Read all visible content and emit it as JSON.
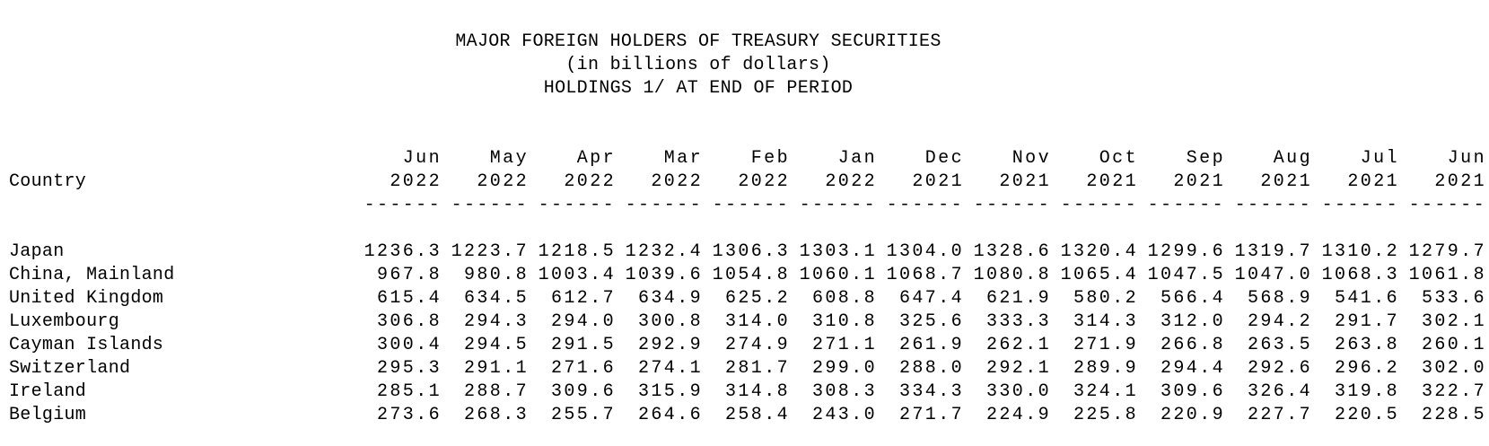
{
  "page": {
    "background_color": "#ffffff",
    "text_color": "#000000"
  },
  "title": {
    "line1": "MAJOR FOREIGN HOLDERS OF TREASURY SECURITIES",
    "line2": "(in billions of dollars)",
    "line3": "HOLDINGS 1/ AT END OF PERIOD"
  },
  "table": {
    "country_header": "Country",
    "column_separator": "------",
    "columns": [
      {
        "month": "Jun",
        "year": "2022"
      },
      {
        "month": "May",
        "year": "2022"
      },
      {
        "month": "Apr",
        "year": "2022"
      },
      {
        "month": "Mar",
        "year": "2022"
      },
      {
        "month": "Feb",
        "year": "2022"
      },
      {
        "month": "Jan",
        "year": "2022"
      },
      {
        "month": "Dec",
        "year": "2021"
      },
      {
        "month": "Nov",
        "year": "2021"
      },
      {
        "month": "Oct",
        "year": "2021"
      },
      {
        "month": "Sep",
        "year": "2021"
      },
      {
        "month": "Aug",
        "year": "2021"
      },
      {
        "month": "Jul",
        "year": "2021"
      },
      {
        "month": "Jun",
        "year": "2021"
      }
    ],
    "rows": [
      {
        "country": "Japan",
        "values": [
          "1236.3",
          "1223.7",
          "1218.5",
          "1232.4",
          "1306.3",
          "1303.1",
          "1304.0",
          "1328.6",
          "1320.4",
          "1299.6",
          "1319.7",
          "1310.2",
          "1279.7"
        ]
      },
      {
        "country": "China, Mainland",
        "values": [
          "967.8",
          "980.8",
          "1003.4",
          "1039.6",
          "1054.8",
          "1060.1",
          "1068.7",
          "1080.8",
          "1065.4",
          "1047.5",
          "1047.0",
          "1068.3",
          "1061.8"
        ]
      },
      {
        "country": "United Kingdom",
        "values": [
          "615.4",
          "634.5",
          "612.7",
          "634.9",
          "625.2",
          "608.8",
          "647.4",
          "621.9",
          "580.2",
          "566.4",
          "568.9",
          "541.6",
          "533.6"
        ]
      },
      {
        "country": "Luxembourg",
        "values": [
          "306.8",
          "294.3",
          "294.0",
          "300.8",
          "314.0",
          "310.8",
          "325.6",
          "333.3",
          "314.3",
          "312.0",
          "294.2",
          "291.7",
          "302.1"
        ]
      },
      {
        "country": "Cayman Islands",
        "values": [
          "300.4",
          "294.5",
          "291.5",
          "292.9",
          "274.9",
          "271.1",
          "261.9",
          "262.1",
          "271.9",
          "266.8",
          "263.5",
          "263.8",
          "260.1"
        ]
      },
      {
        "country": "Switzerland",
        "values": [
          "295.3",
          "291.1",
          "271.6",
          "274.1",
          "281.7",
          "299.0",
          "288.0",
          "292.1",
          "289.9",
          "294.4",
          "292.6",
          "296.2",
          "302.0"
        ]
      },
      {
        "country": "Ireland",
        "values": [
          "285.1",
          "288.7",
          "309.6",
          "315.9",
          "314.8",
          "308.3",
          "334.3",
          "330.0",
          "324.1",
          "309.6",
          "326.4",
          "319.8",
          "322.7"
        ]
      },
      {
        "country": "Belgium",
        "values": [
          "273.6",
          "268.3",
          "255.7",
          "264.6",
          "258.4",
          "243.0",
          "271.7",
          "224.9",
          "225.8",
          "220.9",
          "227.7",
          "220.5",
          "228.5"
        ]
      }
    ]
  }
}
